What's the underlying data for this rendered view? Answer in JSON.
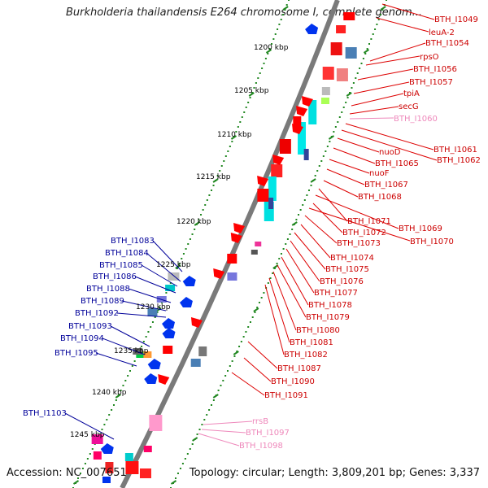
{
  "title": "Burkholderia thailandensis E264 chromosome I, complete genom...",
  "footer": {
    "accession": "Accession: NC_007651",
    "topology": "Topology: circular; Length: 3,809,201 bp; Genes: 3,337"
  },
  "colors": {
    "right_gene_label": "#cc0000",
    "left_gene_label": "#000099",
    "rna_label": "#ee88bb",
    "tick_mark": "#228822",
    "backbone": "#777777",
    "forward_arrow": "#ff0000",
    "reverse_arrow": "#0000ee"
  },
  "position_ticks": [
    "1200 kbp",
    "1205 kbp",
    "1210 kbp",
    "1215 kbp",
    "1220 kbp",
    "1225 kbp",
    "1230 kbp",
    "1235 kbp",
    "1240 kbp",
    "1245 kbp"
  ],
  "right_labels": [
    {
      "id": "BTH_I1049",
      "kind": "gene"
    },
    {
      "id": "leuA-2",
      "kind": "gene"
    },
    {
      "id": "BTH_I1054",
      "kind": "gene"
    },
    {
      "id": "rpsO",
      "kind": "gene"
    },
    {
      "id": "BTH_I1056",
      "kind": "gene"
    },
    {
      "id": "BTH_I1057",
      "kind": "gene"
    },
    {
      "id": "tpiA",
      "kind": "gene"
    },
    {
      "id": "secG",
      "kind": "gene"
    },
    {
      "id": "BTH_I1060",
      "kind": "rna"
    },
    {
      "id": "BTH_I1061",
      "kind": "gene"
    },
    {
      "id": "BTH_I1062",
      "kind": "gene"
    },
    {
      "id": "nuoD",
      "kind": "gene"
    },
    {
      "id": "BTH_I1065",
      "kind": "gene"
    },
    {
      "id": "nuoF",
      "kind": "gene"
    },
    {
      "id": "BTH_I1067",
      "kind": "gene"
    },
    {
      "id": "BTH_I1068",
      "kind": "gene"
    },
    {
      "id": "BTH_I1071",
      "kind": "gene"
    },
    {
      "id": "BTH_I1069",
      "kind": "gene"
    },
    {
      "id": "BTH_I1072",
      "kind": "gene"
    },
    {
      "id": "BTH_I1070",
      "kind": "gene"
    },
    {
      "id": "BTH_I1073",
      "kind": "gene"
    },
    {
      "id": "BTH_I1074",
      "kind": "gene"
    },
    {
      "id": "BTH_I1075",
      "kind": "gene"
    },
    {
      "id": "BTH_I1076",
      "kind": "gene"
    },
    {
      "id": "BTH_I1077",
      "kind": "gene"
    },
    {
      "id": "BTH_I1078",
      "kind": "gene"
    },
    {
      "id": "BTH_I1079",
      "kind": "gene"
    },
    {
      "id": "BTH_I1080",
      "kind": "gene"
    },
    {
      "id": "BTH_I1081",
      "kind": "gene"
    },
    {
      "id": "BTH_I1082",
      "kind": "gene"
    },
    {
      "id": "BTH_I1087",
      "kind": "gene"
    },
    {
      "id": "BTH_I1090",
      "kind": "gene"
    },
    {
      "id": "BTH_I1091",
      "kind": "gene"
    },
    {
      "id": "rrsB",
      "kind": "rna"
    },
    {
      "id": "BTH_I1097",
      "kind": "rna"
    },
    {
      "id": "BTH_I1098",
      "kind": "rna"
    }
  ],
  "left_labels": [
    "BTH_I1083",
    "BTH_I1084",
    "BTH_I1085",
    "BTH_I1086",
    "BTH_I1088",
    "BTH_I1089",
    "BTH_I1092",
    "BTH_I1093",
    "BTH_I1094",
    "BTH_I1095",
    "BTH_I1103"
  ]
}
